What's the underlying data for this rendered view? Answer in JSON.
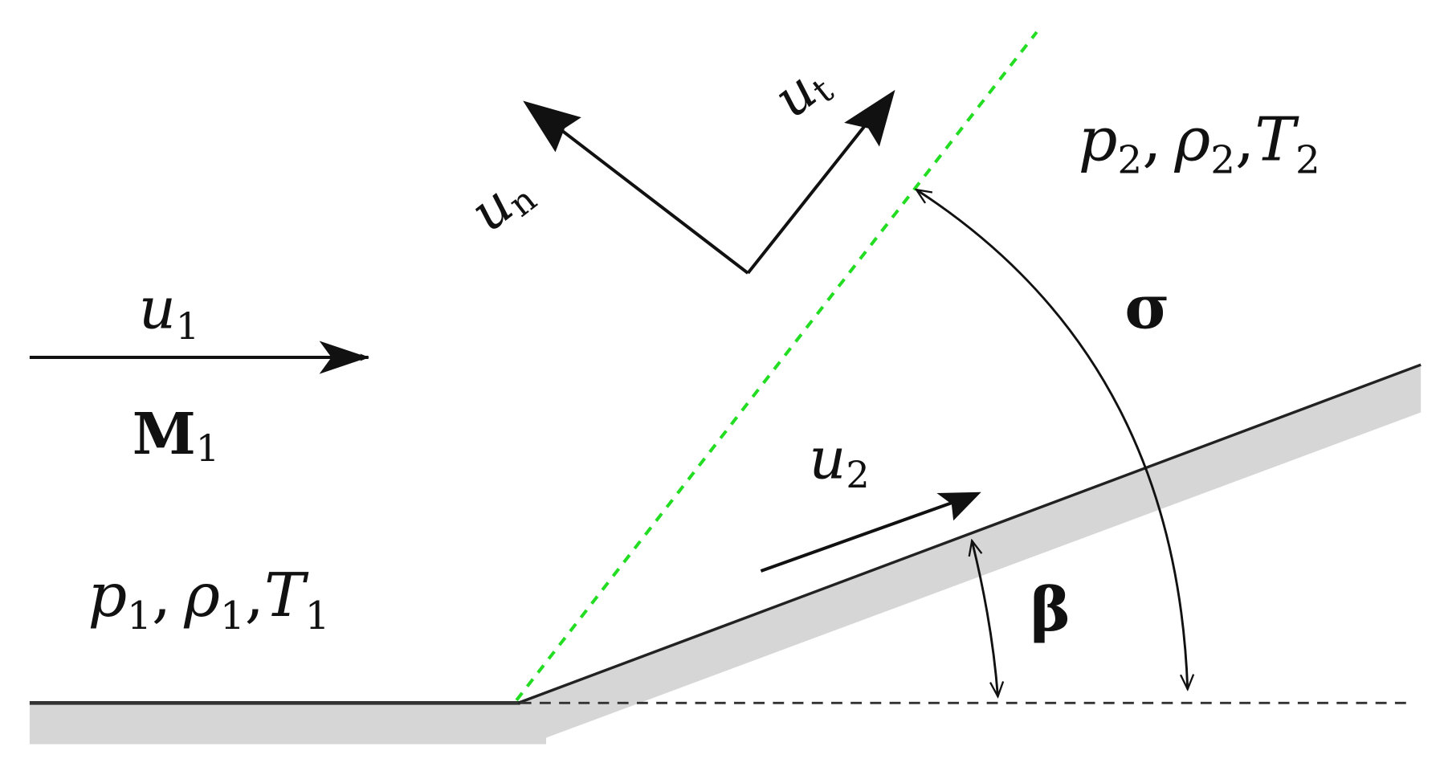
{
  "labels": {
    "u1": {
      "base": "u",
      "sub": "1"
    },
    "M1": {
      "base": "M",
      "sub": "1"
    },
    "un": {
      "base": "u",
      "sub": "n"
    },
    "ut": {
      "base": "u",
      "sub": "t"
    },
    "u2": {
      "base": "u",
      "sub": "2"
    },
    "state1": {
      "p": "p",
      "rho": "ρ",
      "T": "T",
      "sub": "1",
      "sep": ","
    },
    "state2": {
      "p": "p",
      "rho": "ρ",
      "T": "T",
      "sub": "2",
      "sep": ","
    },
    "sigma": "σ",
    "beta": "β"
  },
  "colors": {
    "shock": "#22dd22",
    "wall": "#d6d6d6",
    "line": "#111111"
  }
}
